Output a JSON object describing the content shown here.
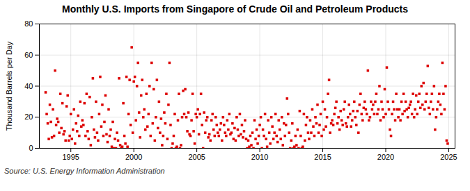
{
  "chart_data": {
    "type": "scatter",
    "title": "Monthly U.S. Imports from Singapore of Crude Oil and Petroleum Products",
    "y_label": "Thousand Barrels per Day",
    "annotations": [
      "Source: U.S. Energy Information Administration"
    ],
    "color": "#dd0000",
    "marker": "square",
    "grid": true,
    "xlim": [
      1992.5,
      2025.5
    ],
    "xticks": [
      1995,
      2000,
      2005,
      2010,
      2015,
      2020,
      2025
    ],
    "ylim": [
      0,
      80
    ],
    "yticks": [
      0,
      20,
      40,
      60,
      80
    ],
    "x": [
      1993.0,
      1993.083,
      1993.167,
      1993.25,
      1993.333,
      1993.417,
      1993.5,
      1993.583,
      1993.667,
      1993.75,
      1993.833,
      1993.917,
      1994.0,
      1994.083,
      1994.167,
      1994.25,
      1994.333,
      1994.417,
      1994.5,
      1994.583,
      1994.667,
      1994.75,
      1994.833,
      1994.917,
      1995.0,
      1995.083,
      1995.167,
      1995.25,
      1995.333,
      1995.417,
      1995.5,
      1995.583,
      1995.667,
      1995.75,
      1995.833,
      1995.917,
      1996.0,
      1996.083,
      1996.167,
      1996.25,
      1996.333,
      1996.417,
      1996.5,
      1996.583,
      1996.667,
      1996.75,
      1996.833,
      1996.917,
      1997.0,
      1997.083,
      1997.167,
      1997.25,
      1997.333,
      1997.417,
      1997.5,
      1997.583,
      1997.667,
      1997.75,
      1997.833,
      1997.917,
      1998.0,
      1998.083,
      1998.167,
      1998.25,
      1998.333,
      1998.417,
      1998.5,
      1998.583,
      1998.667,
      1998.75,
      1998.833,
      1998.917,
      1999.0,
      1999.083,
      1999.167,
      1999.25,
      1999.333,
      1999.417,
      1999.5,
      1999.583,
      1999.667,
      1999.75,
      1999.833,
      1999.917,
      2000.0,
      2000.083,
      2000.167,
      2000.25,
      2000.333,
      2000.417,
      2000.5,
      2000.583,
      2000.667,
      2000.75,
      2000.833,
      2000.917,
      2001.0,
      2001.083,
      2001.167,
      2001.25,
      2001.333,
      2001.417,
      2001.5,
      2001.583,
      2001.667,
      2001.75,
      2001.833,
      2001.917,
      2002.0,
      2002.083,
      2002.167,
      2002.25,
      2002.333,
      2002.417,
      2002.5,
      2002.583,
      2002.667,
      2002.75,
      2002.833,
      2002.917,
      2003.0,
      2003.083,
      2003.167,
      2003.25,
      2003.333,
      2003.417,
      2003.5,
      2003.583,
      2003.667,
      2003.75,
      2003.833,
      2003.917,
      2004.0,
      2004.083,
      2004.167,
      2004.25,
      2004.333,
      2004.417,
      2004.5,
      2004.583,
      2004.667,
      2004.75,
      2004.833,
      2004.917,
      2005.0,
      2005.083,
      2005.167,
      2005.25,
      2005.333,
      2005.417,
      2005.5,
      2005.583,
      2005.667,
      2005.75,
      2005.833,
      2005.917,
      2006.0,
      2006.083,
      2006.167,
      2006.25,
      2006.333,
      2006.417,
      2006.5,
      2006.583,
      2006.667,
      2006.75,
      2006.833,
      2006.917,
      2007.0,
      2007.083,
      2007.167,
      2007.25,
      2007.333,
      2007.417,
      2007.5,
      2007.583,
      2007.667,
      2007.75,
      2007.833,
      2007.917,
      2008.0,
      2008.083,
      2008.167,
      2008.25,
      2008.333,
      2008.417,
      2008.5,
      2008.583,
      2008.667,
      2008.75,
      2008.833,
      2008.917,
      2009.0,
      2009.083,
      2009.167,
      2009.25,
      2009.333,
      2009.417,
      2009.5,
      2009.583,
      2009.667,
      2009.75,
      2009.833,
      2009.917,
      2010.0,
      2010.083,
      2010.167,
      2010.25,
      2010.333,
      2010.417,
      2010.5,
      2010.583,
      2010.667,
      2010.75,
      2010.833,
      2010.917,
      2011.0,
      2011.083,
      2011.167,
      2011.25,
      2011.333,
      2011.417,
      2011.5,
      2011.583,
      2011.667,
      2011.75,
      2011.833,
      2011.917,
      2012.0,
      2012.083,
      2012.167,
      2012.25,
      2012.333,
      2012.417,
      2012.5,
      2012.583,
      2012.667,
      2012.75,
      2012.833,
      2012.917,
      2013.0,
      2013.083,
      2013.167,
      2013.25,
      2013.333,
      2013.417,
      2013.5,
      2013.583,
      2013.667,
      2013.75,
      2013.833,
      2013.917,
      2014.0,
      2014.083,
      2014.167,
      2014.25,
      2014.333,
      2014.417,
      2014.5,
      2014.583,
      2014.667,
      2014.75,
      2014.833,
      2014.917,
      2015.0,
      2015.083,
      2015.167,
      2015.25,
      2015.333,
      2015.417,
      2015.5,
      2015.583,
      2015.667,
      2015.75,
      2015.833,
      2015.917,
      2016.0,
      2016.083,
      2016.167,
      2016.25,
      2016.333,
      2016.417,
      2016.5,
      2016.583,
      2016.667,
      2016.75,
      2016.833,
      2016.917,
      2017.0,
      2017.083,
      2017.167,
      2017.25,
      2017.333,
      2017.417,
      2017.5,
      2017.583,
      2017.667,
      2017.75,
      2017.833,
      2017.917,
      2018.0,
      2018.083,
      2018.167,
      2018.25,
      2018.333,
      2018.417,
      2018.5,
      2018.583,
      2018.667,
      2018.75,
      2018.833,
      2018.917,
      2019.0,
      2019.083,
      2019.167,
      2019.25,
      2019.333,
      2019.417,
      2019.5,
      2019.583,
      2019.667,
      2019.75,
      2019.833,
      2019.917,
      2020.0,
      2020.083,
      2020.167,
      2020.25,
      2020.333,
      2020.417,
      2020.5,
      2020.583,
      2020.667,
      2020.75,
      2020.833,
      2020.917,
      2021.0,
      2021.083,
      2021.167,
      2021.25,
      2021.333,
      2021.417,
      2021.5,
      2021.583,
      2021.667,
      2021.75,
      2021.833,
      2021.917,
      2022.0,
      2022.083,
      2022.167,
      2022.25,
      2022.333,
      2022.417,
      2022.5,
      2022.583,
      2022.667,
      2022.75,
      2022.833,
      2022.917,
      2023.0,
      2023.083,
      2023.167,
      2023.25,
      2023.333,
      2023.417,
      2023.5,
      2023.583,
      2023.667,
      2023.75,
      2023.833,
      2023.917,
      2024.0,
      2024.083,
      2024.167,
      2024.25,
      2024.333,
      2024.417,
      2024.5,
      2024.583,
      2024.667,
      2024.75,
      2024.833,
      2024.917
    ],
    "values": [
      36,
      22,
      16,
      6,
      28,
      17,
      7,
      25,
      8,
      50,
      15,
      19,
      17,
      10,
      35,
      13,
      29,
      9,
      11,
      5,
      27,
      34,
      5,
      8,
      22,
      6,
      12,
      25,
      3,
      16,
      11,
      21,
      8,
      30,
      14,
      18,
      15,
      29,
      8,
      35,
      11,
      6,
      33,
      2,
      20,
      45,
      12,
      7,
      30,
      10,
      5,
      22,
      46,
      14,
      28,
      8,
      17,
      34,
      9,
      4,
      25,
      8,
      12,
      1,
      17,
      0,
      6,
      0,
      10,
      5,
      45,
      2,
      0,
      1,
      29,
      8,
      3,
      46,
      1,
      22,
      44,
      15,
      65,
      10,
      43,
      46,
      18,
      40,
      55,
      23,
      7,
      34,
      44,
      20,
      25,
      12,
      35,
      14,
      22,
      40,
      8,
      55,
      16,
      38,
      5,
      20,
      44,
      13,
      30,
      10,
      19,
      2,
      8,
      23,
      16,
      35,
      6,
      28,
      55,
      15,
      0,
      3,
      8,
      22,
      0,
      1,
      18,
      35,
      0,
      2,
      20,
      37,
      22,
      38,
      20,
      11,
      23,
      9,
      8,
      18,
      35,
      11,
      3,
      22,
      20,
      25,
      9,
      22,
      35,
      15,
      0,
      23,
      10,
      18,
      20,
      7,
      9,
      5,
      18,
      22,
      12,
      8,
      20,
      15,
      10,
      8,
      12,
      16,
      5,
      20,
      15,
      10,
      8,
      18,
      12,
      22,
      9,
      10,
      16,
      6,
      13,
      5,
      20,
      12,
      8,
      22,
      9,
      15,
      7,
      11,
      18,
      6,
      0,
      5,
      1,
      8,
      2,
      10,
      0,
      18,
      6,
      12,
      3,
      8,
      15,
      20,
      0,
      12,
      8,
      22,
      6,
      1,
      18,
      10,
      3,
      20,
      14,
      6,
      10,
      22,
      8,
      4,
      18,
      12,
      6,
      20,
      2,
      16,
      8,
      15,
      32,
      22,
      10,
      0,
      5,
      16,
      0,
      1,
      8,
      2,
      12,
      0,
      24,
      8,
      0,
      1,
      22,
      5,
      15,
      20,
      10,
      6,
      18,
      10,
      25,
      14,
      8,
      20,
      16,
      28,
      10,
      15,
      22,
      8,
      30,
      12,
      25,
      14,
      20,
      35,
      44,
      10,
      16,
      18,
      15,
      22,
      26,
      30,
      16,
      20,
      12,
      24,
      18,
      15,
      25,
      30,
      16,
      14,
      20,
      28,
      22,
      14,
      18,
      24,
      30,
      20,
      15,
      24,
      10,
      28,
      35,
      22,
      18,
      26,
      30,
      25,
      22,
      50,
      18,
      20,
      30,
      25,
      28,
      22,
      30,
      35,
      22,
      25,
      40,
      18,
      30,
      25,
      20,
      38,
      22,
      52,
      30,
      25,
      12,
      8,
      22,
      30,
      25,
      18,
      35,
      25,
      20,
      25,
      18,
      30,
      22,
      35,
      24,
      30,
      25,
      20,
      26,
      28,
      30,
      22,
      35,
      20,
      25,
      34,
      22,
      30,
      35,
      26,
      40,
      28,
      42,
      25,
      30,
      35,
      53,
      26,
      22,
      30,
      35,
      25,
      40,
      12,
      20,
      25,
      30,
      35,
      28,
      22,
      55,
      35,
      25,
      40,
      5,
      3
    ]
  }
}
